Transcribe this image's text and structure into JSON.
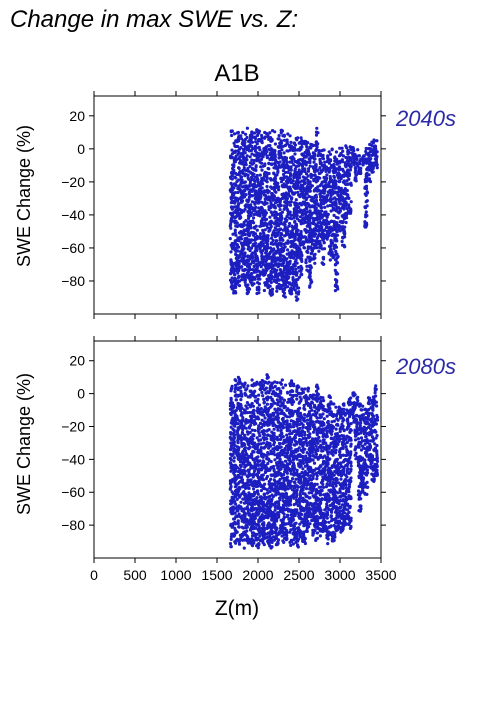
{
  "figure_title": "Change in max SWE vs. Z:",
  "scenario": "A1B",
  "colors": {
    "points": "#1c1ec0",
    "panel_label": "#2a2aa8"
  },
  "chart_data": [
    {
      "type": "scatter",
      "panel_label": "2040s",
      "xlabel": "",
      "ylabel": "SWE Change (%)",
      "xlim": [
        0,
        3500
      ],
      "ylim": [
        -100,
        32
      ],
      "xticks": [
        0,
        500,
        1000,
        1500,
        2000,
        2500,
        3000,
        3500
      ],
      "yticks": [
        20,
        0,
        -20,
        -40,
        -60,
        -80
      ],
      "ytick_labels": [
        "20",
        "0",
        "−20",
        "−40",
        "−60",
        "−80"
      ],
      "grid": false,
      "point_color": "#1c1ec0",
      "columns": [
        [
          1680,
          -85,
          12
        ],
        [
          1720,
          -88,
          10
        ],
        [
          1760,
          -83,
          11
        ],
        [
          1800,
          -80,
          12
        ],
        [
          1840,
          -86,
          9
        ],
        [
          1880,
          -90,
          13
        ],
        [
          1920,
          -84,
          11
        ],
        [
          1960,
          -82,
          10
        ],
        [
          2000,
          -88,
          12
        ],
        [
          2040,
          -80,
          11
        ],
        [
          2080,
          -86,
          13
        ],
        [
          2120,
          -84,
          10
        ],
        [
          2160,
          -89,
          12
        ],
        [
          2200,
          -82,
          11
        ],
        [
          2240,
          -87,
          9
        ],
        [
          2280,
          -85,
          12
        ],
        [
          2320,
          -90,
          11
        ],
        [
          2360,
          -84,
          10
        ],
        [
          2400,
          -88,
          9
        ],
        [
          2440,
          -86,
          8
        ],
        [
          2480,
          -92,
          7
        ],
        [
          2520,
          -80,
          9
        ],
        [
          2560,
          -60,
          8
        ],
        [
          2600,
          -75,
          5
        ],
        [
          2640,
          -85,
          6
        ],
        [
          2680,
          -70,
          3
        ],
        [
          2720,
          -60,
          13
        ],
        [
          2760,
          -62,
          2
        ],
        [
          2800,
          -70,
          0
        ],
        [
          2840,
          -55,
          -2
        ],
        [
          2880,
          -68,
          1
        ],
        [
          2920,
          -66,
          0
        ],
        [
          2960,
          -86,
          -1
        ],
        [
          3000,
          -50,
          2
        ],
        [
          3040,
          -60,
          1
        ],
        [
          3080,
          -45,
          3
        ],
        [
          3120,
          -40,
          2
        ],
        [
          3160,
          -10,
          1
        ],
        [
          3200,
          -20,
          0
        ],
        [
          3240,
          -15,
          -3
        ],
        [
          3280,
          -10,
          -4
        ],
        [
          3320,
          -48,
          2
        ],
        [
          3360,
          -20,
          3
        ],
        [
          3400,
          -15,
          6
        ],
        [
          3440,
          -12,
          7
        ]
      ]
    },
    {
      "type": "scatter",
      "panel_label": "2080s",
      "xlabel": "Z(m)",
      "ylabel": "SWE Change (%)",
      "xlim": [
        0,
        3500
      ],
      "ylim": [
        -100,
        32
      ],
      "xticks": [
        0,
        500,
        1000,
        1500,
        2000,
        2500,
        3000,
        3500
      ],
      "xtick_labels": [
        "0",
        "500",
        "1000",
        "1500",
        "2000",
        "2500",
        "3000",
        "3500"
      ],
      "yticks": [
        20,
        0,
        -20,
        -40,
        -60,
        -80
      ],
      "ytick_labels": [
        "20",
        "0",
        "−20",
        "−40",
        "−60",
        "−80"
      ],
      "grid": false,
      "point_color": "#1c1ec0",
      "columns": [
        [
          1680,
          -94,
          8
        ],
        [
          1720,
          -92,
          10
        ],
        [
          1760,
          -93,
          12
        ],
        [
          1800,
          -90,
          10
        ],
        [
          1840,
          -94,
          9
        ],
        [
          1880,
          -92,
          8
        ],
        [
          1920,
          -93,
          9
        ],
        [
          1960,
          -91,
          7
        ],
        [
          2000,
          -94,
          9
        ],
        [
          2040,
          -90,
          8
        ],
        [
          2080,
          -93,
          10
        ],
        [
          2120,
          -92,
          14
        ],
        [
          2160,
          -94,
          9
        ],
        [
          2200,
          -91,
          8
        ],
        [
          2240,
          -93,
          7
        ],
        [
          2280,
          -92,
          9
        ],
        [
          2320,
          -94,
          8
        ],
        [
          2360,
          -90,
          7
        ],
        [
          2400,
          -93,
          8
        ],
        [
          2440,
          -92,
          6
        ],
        [
          2480,
          -94,
          5
        ],
        [
          2520,
          -90,
          4
        ],
        [
          2560,
          -92,
          3
        ],
        [
          2600,
          -86,
          4
        ],
        [
          2640,
          -80,
          6
        ],
        [
          2680,
          -88,
          1
        ],
        [
          2720,
          -92,
          8
        ],
        [
          2760,
          -87,
          0
        ],
        [
          2800,
          -84,
          -2
        ],
        [
          2840,
          -92,
          -3
        ],
        [
          2880,
          -86,
          -1
        ],
        [
          2920,
          -90,
          -5
        ],
        [
          2960,
          -84,
          -4
        ],
        [
          3000,
          -88,
          -6
        ],
        [
          3040,
          -85,
          -5
        ],
        [
          3080,
          -80,
          -8
        ],
        [
          3120,
          -82,
          -2
        ],
        [
          3160,
          -20,
          1
        ],
        [
          3200,
          -40,
          0
        ],
        [
          3240,
          -72,
          -4
        ],
        [
          3280,
          -60,
          -5
        ],
        [
          3320,
          -62,
          -3
        ],
        [
          3360,
          -45,
          -1
        ],
        [
          3400,
          -55,
          2
        ],
        [
          3440,
          -50,
          5
        ]
      ]
    }
  ]
}
